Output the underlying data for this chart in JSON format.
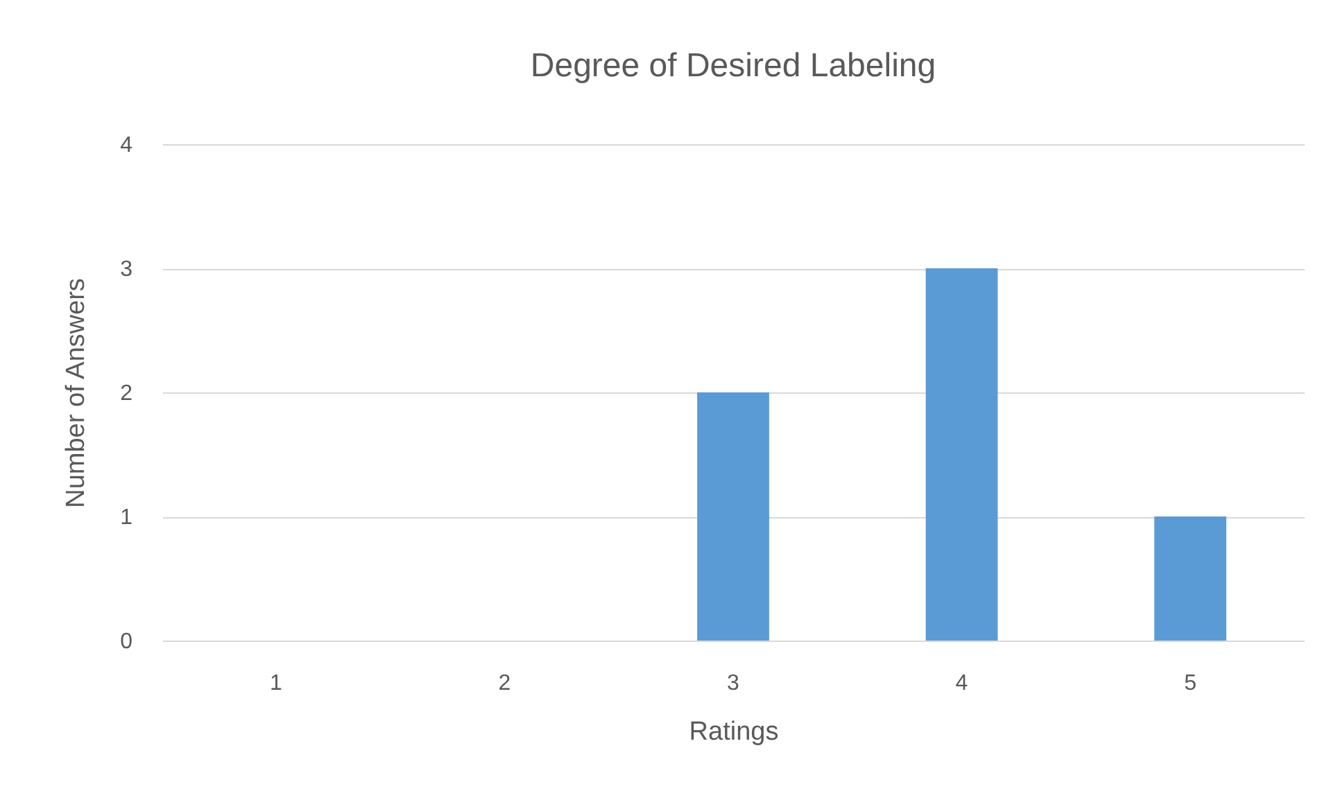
{
  "chart_data": {
    "type": "bar",
    "title": "Degree of Desired Labeling",
    "xlabel": "Ratings",
    "ylabel": "Number of Answers",
    "categories": [
      "1",
      "2",
      "3",
      "4",
      "5"
    ],
    "values": [
      0,
      0,
      2,
      3,
      1
    ],
    "color": "#5b9bd5",
    "ylim": [
      0,
      4
    ],
    "yticks": [
      0,
      1,
      2,
      3,
      4
    ],
    "grid": "y"
  }
}
